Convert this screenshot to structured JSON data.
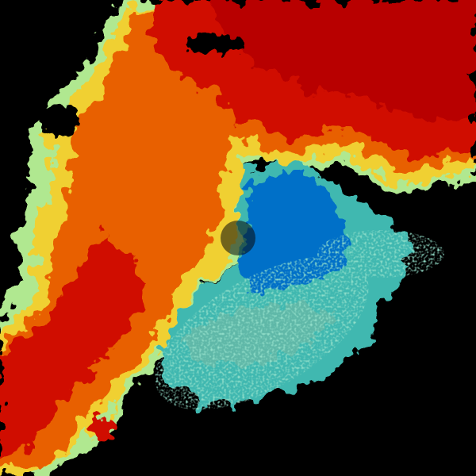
{
  "image": {
    "kind": "weather radar sweep",
    "palette": {
      "background": "#000000",
      "dark_red": "#b80000",
      "red": "#d01000",
      "orange": "#e86000",
      "yellow": "#f0d030",
      "light_green": "#b0e890",
      "teal": "#40b8b0",
      "blue": "#0070c8"
    }
  }
}
